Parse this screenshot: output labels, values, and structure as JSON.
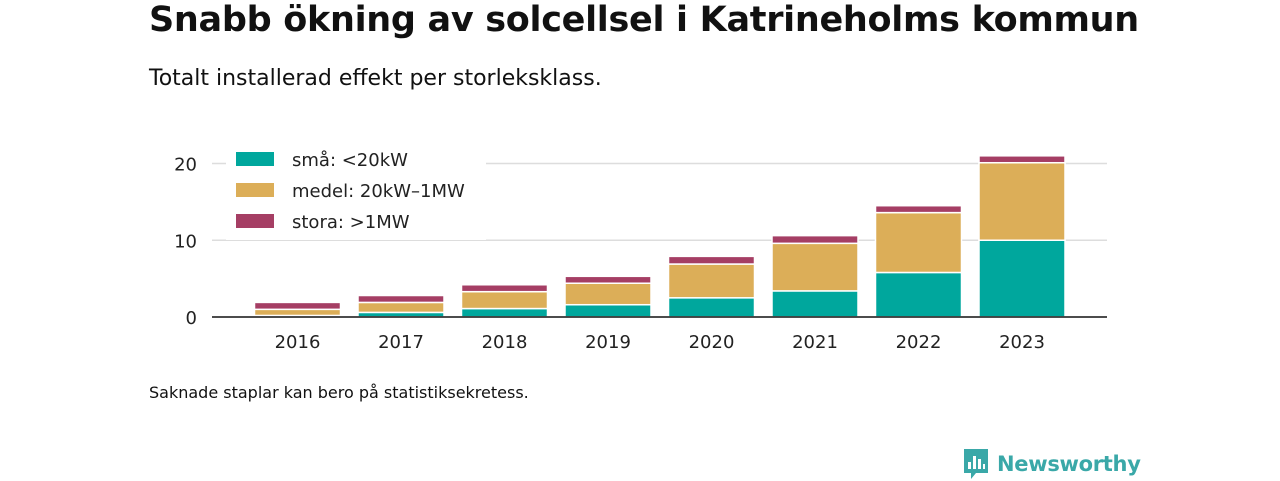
{
  "header": {
    "title": "Snabb ökning av solcellsel i Katrineholms kommun",
    "subtitle": "Totalt installerad effekt per storleksklass."
  },
  "footer": {
    "note": "Saknade staplar kan bero på statistiksekretess.",
    "brand": "Newsworthy"
  },
  "icons": {
    "brand_logo": "newsworthy-logo-icon"
  },
  "colors": {
    "brand": "#3aa8a8"
  },
  "chart_data": {
    "type": "bar",
    "stacked": true,
    "title": "Snabb ökning av solcellsel i Katrineholms kommun",
    "subtitle": "Totalt installerad effekt per storleksklass.",
    "categories": [
      "2016",
      "2017",
      "2018",
      "2019",
      "2020",
      "2021",
      "2022",
      "2023"
    ],
    "series": [
      {
        "name": "små: <20kW",
        "color": "#00a79d",
        "values": [
          0.2,
          0.6,
          1.1,
          1.6,
          2.5,
          3.4,
          5.8,
          10.0
        ]
      },
      {
        "name": "medel: 20kW–1MW",
        "color": "#dcae58",
        "values": [
          0.8,
          1.3,
          2.2,
          2.8,
          4.4,
          6.2,
          7.8,
          10.1
        ]
      },
      {
        "name": "stora: >1MW",
        "color": "#a53e64",
        "values": [
          0.9,
          0.9,
          0.9,
          0.9,
          1.0,
          1.0,
          0.9,
          0.9
        ]
      }
    ],
    "xlabel": "",
    "ylabel": "",
    "ylim": [
      0,
      20.5
    ],
    "yticks": [
      0,
      10,
      20
    ],
    "grid": true,
    "legend": "top-left"
  }
}
